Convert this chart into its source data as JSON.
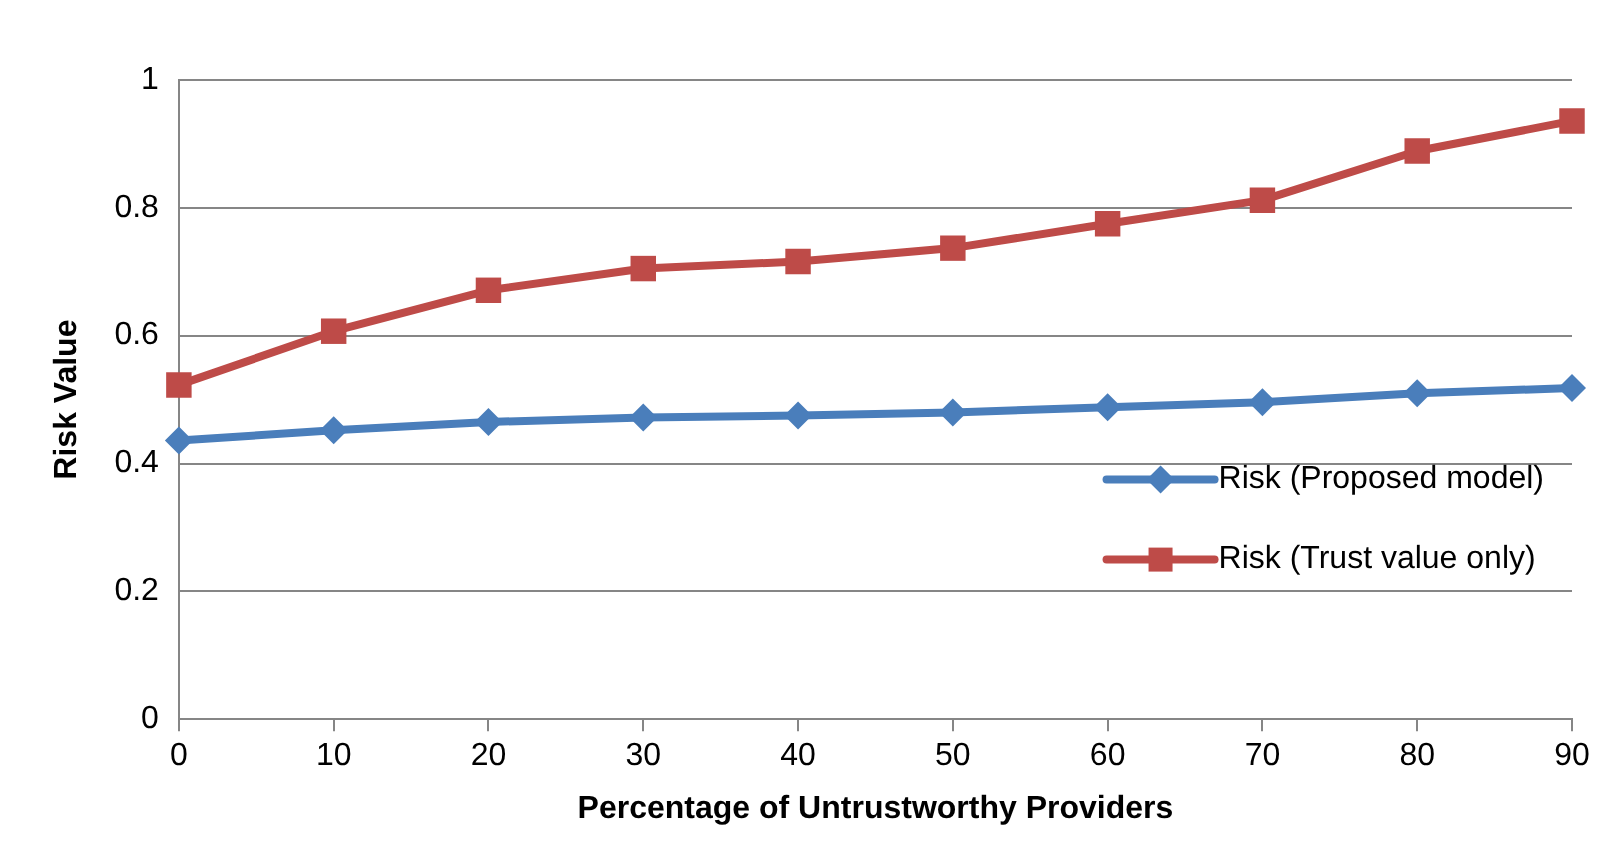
{
  "chart_data": {
    "type": "line",
    "xlabel": "Percentage of Untrustworthy Providers",
    "ylabel": "Risk Value",
    "categories": [
      "0",
      "10",
      "20",
      "30",
      "40",
      "50",
      "60",
      "70",
      "80",
      "90"
    ],
    "series": [
      {
        "name": "Risk (Proposed model)",
        "color": "#4a7ebb",
        "marker": "diamond",
        "values": [
          0.436,
          0.452,
          0.465,
          0.472,
          0.475,
          0.48,
          0.488,
          0.496,
          0.51,
          0.518
        ]
      },
      {
        "name": "Risk (Trust value only)",
        "color": "#be4b48",
        "marker": "square",
        "values": [
          0.523,
          0.607,
          0.671,
          0.705,
          0.716,
          0.737,
          0.775,
          0.812,
          0.889,
          0.936
        ]
      }
    ],
    "ylim": [
      0,
      1
    ],
    "yticks": [
      0,
      0.2,
      0.4,
      0.6,
      0.8,
      1
    ],
    "grid": "y",
    "legend": "right"
  }
}
